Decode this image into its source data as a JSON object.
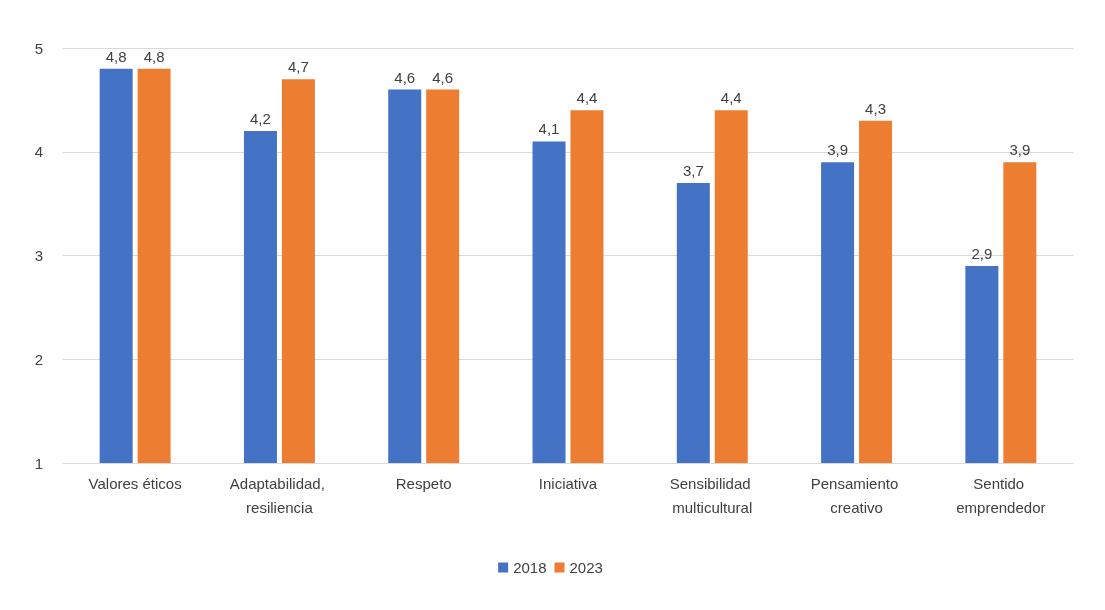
{
  "chart_data": {
    "type": "bar",
    "categories": [
      "Valores éticos",
      "Adaptabilidad, resiliencia",
      "Respeto",
      "Iniciativa",
      "Sensibilidad multicultural",
      "Pensamiento creativo",
      "Sentido emprendedor"
    ],
    "series": [
      {
        "name": "2018",
        "color": "#4472c4",
        "values": [
          4.8,
          4.2,
          4.6,
          4.1,
          3.7,
          3.9,
          2.9
        ],
        "value_labels": [
          "4,8",
          "4,2",
          "4,6",
          "4,1",
          "3,7",
          "3,9",
          "2,9"
        ]
      },
      {
        "name": "2023",
        "color": "#ed7d31",
        "values": [
          4.8,
          4.7,
          4.6,
          4.4,
          4.4,
          4.3,
          3.9
        ],
        "value_labels": [
          "4,8",
          "4,7",
          "4,6",
          "4,4",
          "4,4",
          "4,3",
          "3,9"
        ]
      }
    ],
    "ylim": [
      1,
      5
    ],
    "yticks": [
      1,
      2,
      3,
      4,
      5
    ],
    "grid": "y",
    "legend": "bottom"
  }
}
